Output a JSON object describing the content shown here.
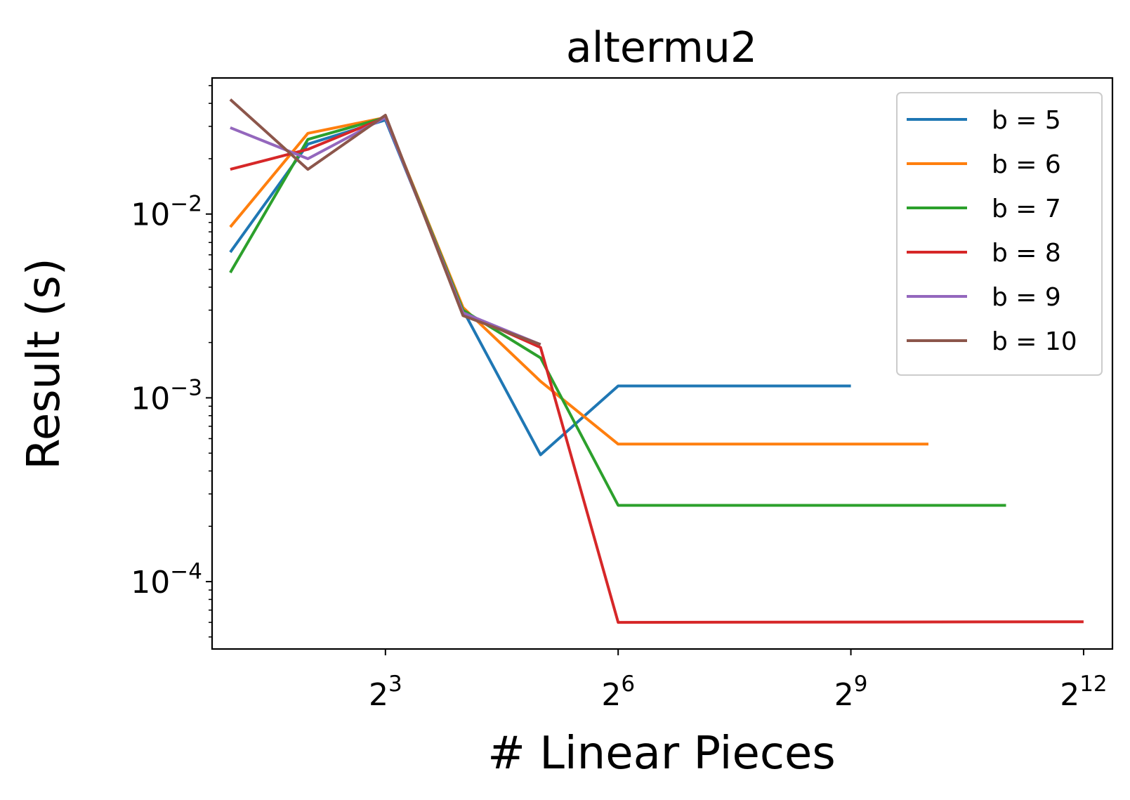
{
  "chart_data": {
    "type": "line",
    "title": "altermu2",
    "xlabel": "# Linear Pieces",
    "ylabel": "Result (s)",
    "x_scale": "log2",
    "y_scale": "log10",
    "xlim": [
      1.7,
      5300
    ],
    "ylim": [
      4.3e-05,
      0.055
    ],
    "grid": false,
    "legend_position": "top-right",
    "xticks": [
      {
        "value": 8,
        "base": "2",
        "exp": "3"
      },
      {
        "value": 64,
        "base": "2",
        "exp": "6"
      },
      {
        "value": 512,
        "base": "2",
        "exp": "9"
      },
      {
        "value": 4096,
        "base": "2",
        "exp": "12"
      }
    ],
    "yticks": [
      {
        "value": 0.01,
        "base": "10",
        "exp": "−2"
      },
      {
        "value": 0.001,
        "base": "10",
        "exp": "−3"
      },
      {
        "value": 0.0001,
        "base": "10",
        "exp": "−4"
      }
    ],
    "series": [
      {
        "name": "b = 5",
        "color": "#1f77b4",
        "x": [
          2,
          4,
          8,
          16,
          32,
          64,
          512
        ],
        "y": [
          0.0062,
          0.024,
          0.0325,
          0.003,
          0.00049,
          0.00116,
          0.00116
        ]
      },
      {
        "name": "b = 6",
        "color": "#ff7f0e",
        "x": [
          2,
          4,
          8,
          16,
          32,
          64,
          1024
        ],
        "y": [
          0.0085,
          0.0275,
          0.0335,
          0.0031,
          0.00123,
          0.00056,
          0.00056
        ]
      },
      {
        "name": "b = 7",
        "color": "#2ca02c",
        "x": [
          2,
          4,
          8,
          16,
          32,
          64,
          2048
        ],
        "y": [
          0.0048,
          0.0255,
          0.0335,
          0.003,
          0.00165,
          0.00026,
          0.00026
        ]
      },
      {
        "name": "b = 8",
        "color": "#d62728",
        "x": [
          2,
          4,
          8,
          16,
          32,
          64,
          4096
        ],
        "y": [
          0.0175,
          0.0225,
          0.0335,
          0.0029,
          0.00188,
          6e-05,
          6.05e-05
        ]
      },
      {
        "name": "b = 9",
        "color": "#9467bd",
        "x": [
          2,
          4,
          8,
          16,
          32
        ],
        "y": [
          0.0295,
          0.02,
          0.0335,
          0.0029,
          0.00195
        ]
      },
      {
        "name": "b = 10",
        "color": "#8c564b",
        "x": [
          2,
          4,
          8,
          16,
          32
        ],
        "y": [
          0.042,
          0.0175,
          0.0345,
          0.0028,
          0.00195
        ]
      }
    ]
  }
}
